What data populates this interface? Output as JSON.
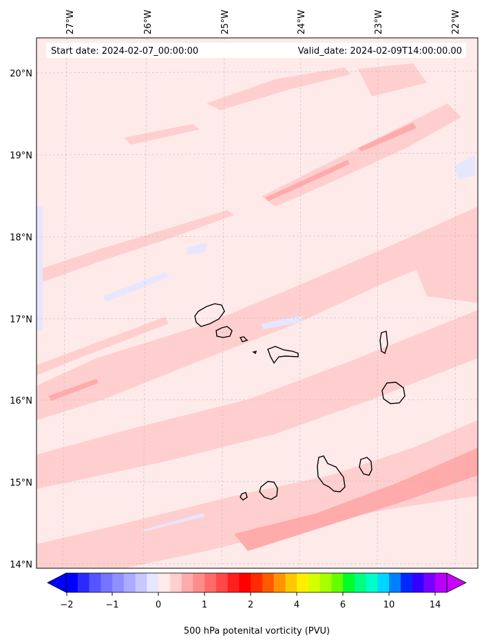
{
  "header": {
    "start_date": "Start date: 2024-02-07_00:00:00",
    "valid_date": "Valid_date: 2024-02-09T14:00:00.00"
  },
  "map": {
    "lon_range": [
      -27.35,
      -21.85
    ],
    "lat_range": [
      13.95,
      20.4
    ],
    "grid": true,
    "lon_ticks": [
      "27°W",
      "26°W",
      "25°W",
      "24°W",
      "23°W",
      "22°W"
    ],
    "lat_ticks": [
      "20°N",
      "19°N",
      "18°N",
      "17°N",
      "16°N",
      "15°N",
      "14°N"
    ],
    "islands": [
      "Santo Antão",
      "São Vicente",
      "Santa Luzia",
      "Branco",
      "Raso",
      "São Nicolau",
      "Sal",
      "Boa Vista",
      "Maio",
      "Santiago",
      "Fogo",
      "Brava"
    ]
  },
  "colorbar": {
    "title": "500 hPa potenital vorticity (PVU)",
    "tick_labels": [
      "−2",
      "−1",
      "0",
      "1",
      "2",
      "4",
      "6",
      "10",
      "14"
    ],
    "extend": "both",
    "colors": [
      "#0000ff",
      "#2a2aff",
      "#5555ff",
      "#7474ff",
      "#8f8fff",
      "#ababff",
      "#c8c8ff",
      "#e6e6ff",
      "#ffeaea",
      "#ffcfcf",
      "#ffabab",
      "#ff8c8c",
      "#ff6b6b",
      "#ff4848",
      "#ff1f1f",
      "#ff0000",
      "#ff2b00",
      "#ff5a00",
      "#ff9400",
      "#ffc800",
      "#ffee00",
      "#d4ff00",
      "#a8ff00",
      "#64ff00",
      "#00ff2a",
      "#00ff80",
      "#00ffc8",
      "#00d6ff",
      "#0080ff",
      "#0028ff",
      "#3300ff",
      "#7700ff",
      "#b800ff"
    ],
    "under_color": "#0000ff",
    "over_color": "#c800ff"
  }
}
